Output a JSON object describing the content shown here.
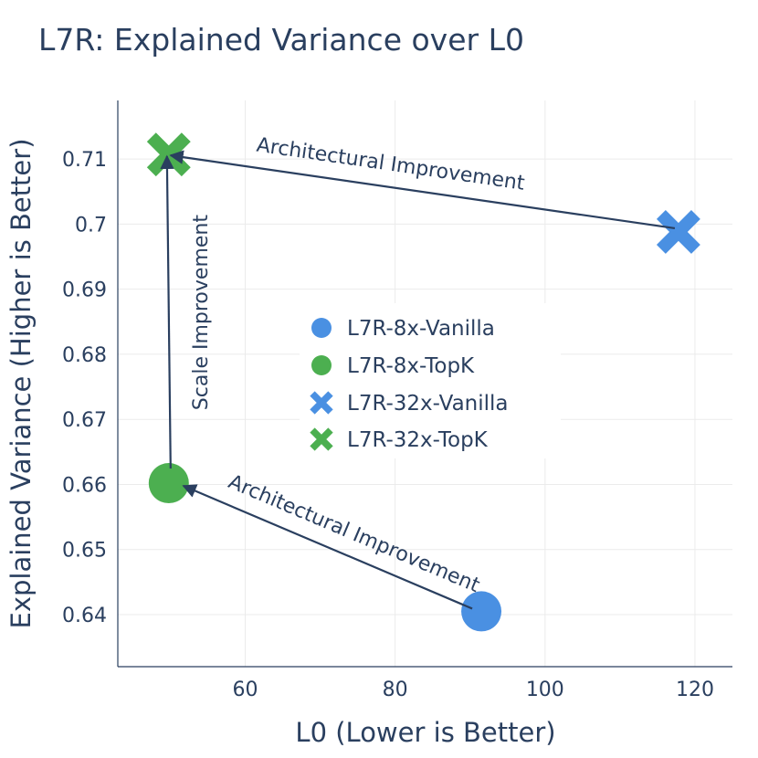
{
  "chart_data": {
    "type": "scatter",
    "title": "L7R: Explained Variance over L0",
    "xlabel": "L0 (Lower is Better)",
    "ylabel": "Explained Variance (Higher is Better)",
    "xlim": [
      43,
      125
    ],
    "ylim": [
      0.632,
      0.719
    ],
    "xticks": [
      60,
      80,
      100,
      120
    ],
    "xtick_labels": [
      "60",
      "80",
      "100",
      "120"
    ],
    "yticks": [
      0.64,
      0.65,
      0.66,
      0.67,
      0.68,
      0.69,
      0.7,
      0.71
    ],
    "ytick_labels": [
      "0.64",
      "0.65",
      "0.66",
      "0.67",
      "0.68",
      "0.69",
      "0.7",
      "0.71"
    ],
    "grid": true,
    "legend_position": "center",
    "series": [
      {
        "name": "L7R-8x-Vanilla",
        "marker": "circle",
        "color": "#4a90e2",
        "x": 91.5,
        "y": 0.6405
      },
      {
        "name": "L7R-8x-TopK",
        "marker": "circle",
        "color": "#4caf50",
        "x": 49.8,
        "y": 0.6602
      },
      {
        "name": "L7R-32x-Vanilla",
        "marker": "x",
        "color": "#4a90e2",
        "x": 117.8,
        "y": 0.6988
      },
      {
        "name": "L7R-32x-TopK",
        "marker": "x",
        "color": "#4caf50",
        "x": 49.8,
        "y": 0.7107
      }
    ],
    "annotations": [
      {
        "text": "Architectural Improvement",
        "from": [
          91.5,
          0.6405
        ],
        "to": [
          49.8,
          0.6602
        ]
      },
      {
        "text": "Architectural Improvement",
        "from": [
          117.8,
          0.6988
        ],
        "to": [
          49.8,
          0.7107
        ]
      },
      {
        "text": "Scale Improvement",
        "from": [
          49.8,
          0.6602
        ],
        "to": [
          49.8,
          0.7107
        ]
      }
    ]
  }
}
